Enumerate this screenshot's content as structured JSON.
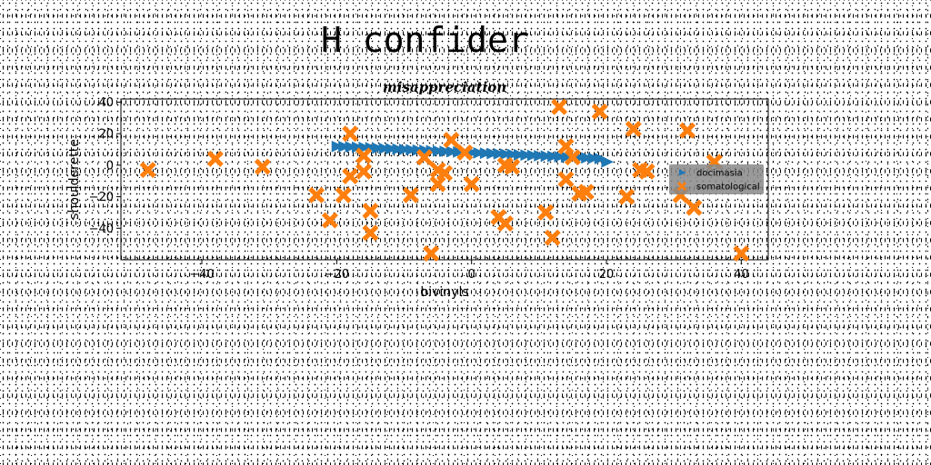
{
  "page_title": "H confider",
  "chart_data": {
    "type": "scatter",
    "title": "misappreciation",
    "xlabel": "bivinyls",
    "ylabel": "shoulderette",
    "xlim": [
      -52,
      44
    ],
    "ylim": [
      -60,
      42
    ],
    "xticks": [
      -40,
      -20,
      0,
      20,
      40
    ],
    "yticks": [
      -40,
      -20,
      0,
      20,
      40
    ],
    "grid": false,
    "legend_position": "center-right",
    "series": [
      {
        "name": "docimasia",
        "marker": "triangle-right",
        "color": "#1f77b4",
        "points": [
          [
            -20.0,
            11.9
          ],
          [
            -19.0,
            11.8
          ],
          [
            -18.0,
            11.6
          ],
          [
            -17.0,
            11.4
          ],
          [
            -16.0,
            11.2
          ],
          [
            -15.0,
            11.0
          ],
          [
            -14.0,
            10.8
          ],
          [
            -13.0,
            10.6
          ],
          [
            -12.0,
            10.4
          ],
          [
            -11.0,
            10.2
          ],
          [
            -10.0,
            10.0
          ],
          [
            -9.0,
            9.8
          ],
          [
            -8.0,
            9.6
          ],
          [
            -7.0,
            9.4
          ],
          [
            -6.0,
            9.2
          ],
          [
            -5.0,
            9.0
          ],
          [
            -4.0,
            8.8
          ],
          [
            -3.0,
            8.6
          ],
          [
            -2.0,
            8.4
          ],
          [
            -1.0,
            8.2
          ],
          [
            0.0,
            8.0
          ],
          [
            1.0,
            7.8
          ],
          [
            2.0,
            7.6
          ],
          [
            3.0,
            7.4
          ],
          [
            4.0,
            7.2
          ],
          [
            5.0,
            7.0
          ],
          [
            6.0,
            6.8
          ],
          [
            7.0,
            6.6
          ],
          [
            8.0,
            6.4
          ],
          [
            9.0,
            6.2
          ],
          [
            10.0,
            6.0
          ],
          [
            11.0,
            5.8
          ],
          [
            12.0,
            5.6
          ],
          [
            13.0,
            5.4
          ],
          [
            14.0,
            5.2
          ],
          [
            15.0,
            5.0
          ],
          [
            16.0,
            4.8
          ],
          [
            17.0,
            4.6
          ],
          [
            18.0,
            4.4
          ],
          [
            19.0,
            4.2
          ],
          [
            20.0,
            2.1
          ]
        ]
      },
      {
        "name": "somatological",
        "marker": "x-filled",
        "color": "#ff7f0e",
        "points": [
          [
            -48,
            -3
          ],
          [
            -38,
            4
          ],
          [
            -31,
            -1
          ],
          [
            -23,
            -19
          ],
          [
            -21,
            -35
          ],
          [
            -19,
            -19
          ],
          [
            -18,
            20
          ],
          [
            -18,
            -7
          ],
          [
            -16,
            6
          ],
          [
            -16,
            -4
          ],
          [
            -15,
            -29
          ],
          [
            -15,
            -43
          ],
          [
            -9,
            -19
          ],
          [
            -7,
            5
          ],
          [
            -6,
            -56
          ],
          [
            -5,
            -12
          ],
          [
            -5,
            -3
          ],
          [
            -4,
            -5
          ],
          [
            -3,
            16
          ],
          [
            -1,
            8
          ],
          [
            0,
            -12
          ],
          [
            4,
            -33
          ],
          [
            5,
            -37
          ],
          [
            5,
            0
          ],
          [
            6,
            -1
          ],
          [
            11,
            -30
          ],
          [
            12,
            -46
          ],
          [
            13,
            37
          ],
          [
            14,
            12
          ],
          [
            14,
            -9
          ],
          [
            15,
            5
          ],
          [
            16,
            -18
          ],
          [
            17,
            -17
          ],
          [
            19,
            34
          ],
          [
            23,
            -20
          ],
          [
            24,
            23
          ],
          [
            25,
            -3
          ],
          [
            26,
            -4
          ],
          [
            31,
            -19
          ],
          [
            32,
            22
          ],
          [
            33,
            -27
          ],
          [
            36,
            2
          ],
          [
            40,
            -56
          ]
        ]
      }
    ]
  }
}
